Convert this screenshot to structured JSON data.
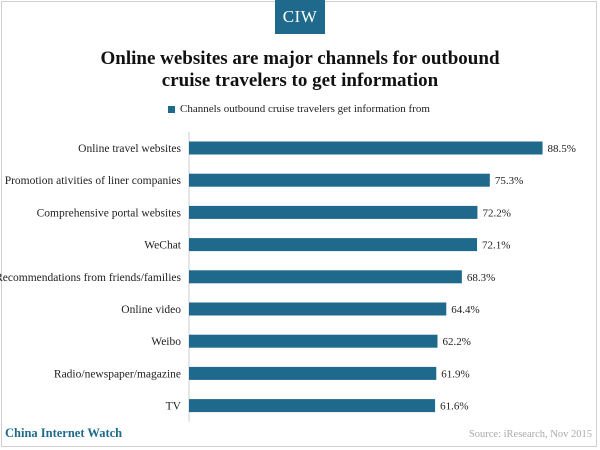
{
  "logo": "CIW",
  "footer": {
    "brand": "China Internet Watch",
    "source": "Source: iResearch, Nov 2015"
  },
  "colors": {
    "bar": "#1f6a8c",
    "brand": "#1f6a8c"
  },
  "chart_data": {
    "type": "bar",
    "orientation": "horizontal",
    "title": "Online websites are major channels for outbound cruise travelers to get information",
    "title_lines": [
      "Online websites are major channels for outbound",
      "cruise travelers to get information"
    ],
    "legend_position": "top",
    "categories": [
      "Online travel websites",
      "Promotion ativities of liner companies",
      "Comprehensive portal websites",
      "WeChat",
      "Recommendations from friends/families",
      "Online video",
      "Weibo",
      "Radio/newspaper/magazine",
      "TV"
    ],
    "series": [
      {
        "name": "Channels outbound cruise travelers get information from",
        "values": [
          88.5,
          75.3,
          72.2,
          72.1,
          68.3,
          64.4,
          62.2,
          61.9,
          61.6
        ],
        "labels": [
          "88.5%",
          "75.3%",
          "72.2%",
          "72.1%",
          "68.3%",
          "64.4%",
          "62.2%",
          "61.9%",
          "61.6%"
        ]
      }
    ],
    "xlim": [
      0,
      100
    ],
    "grid": false
  }
}
